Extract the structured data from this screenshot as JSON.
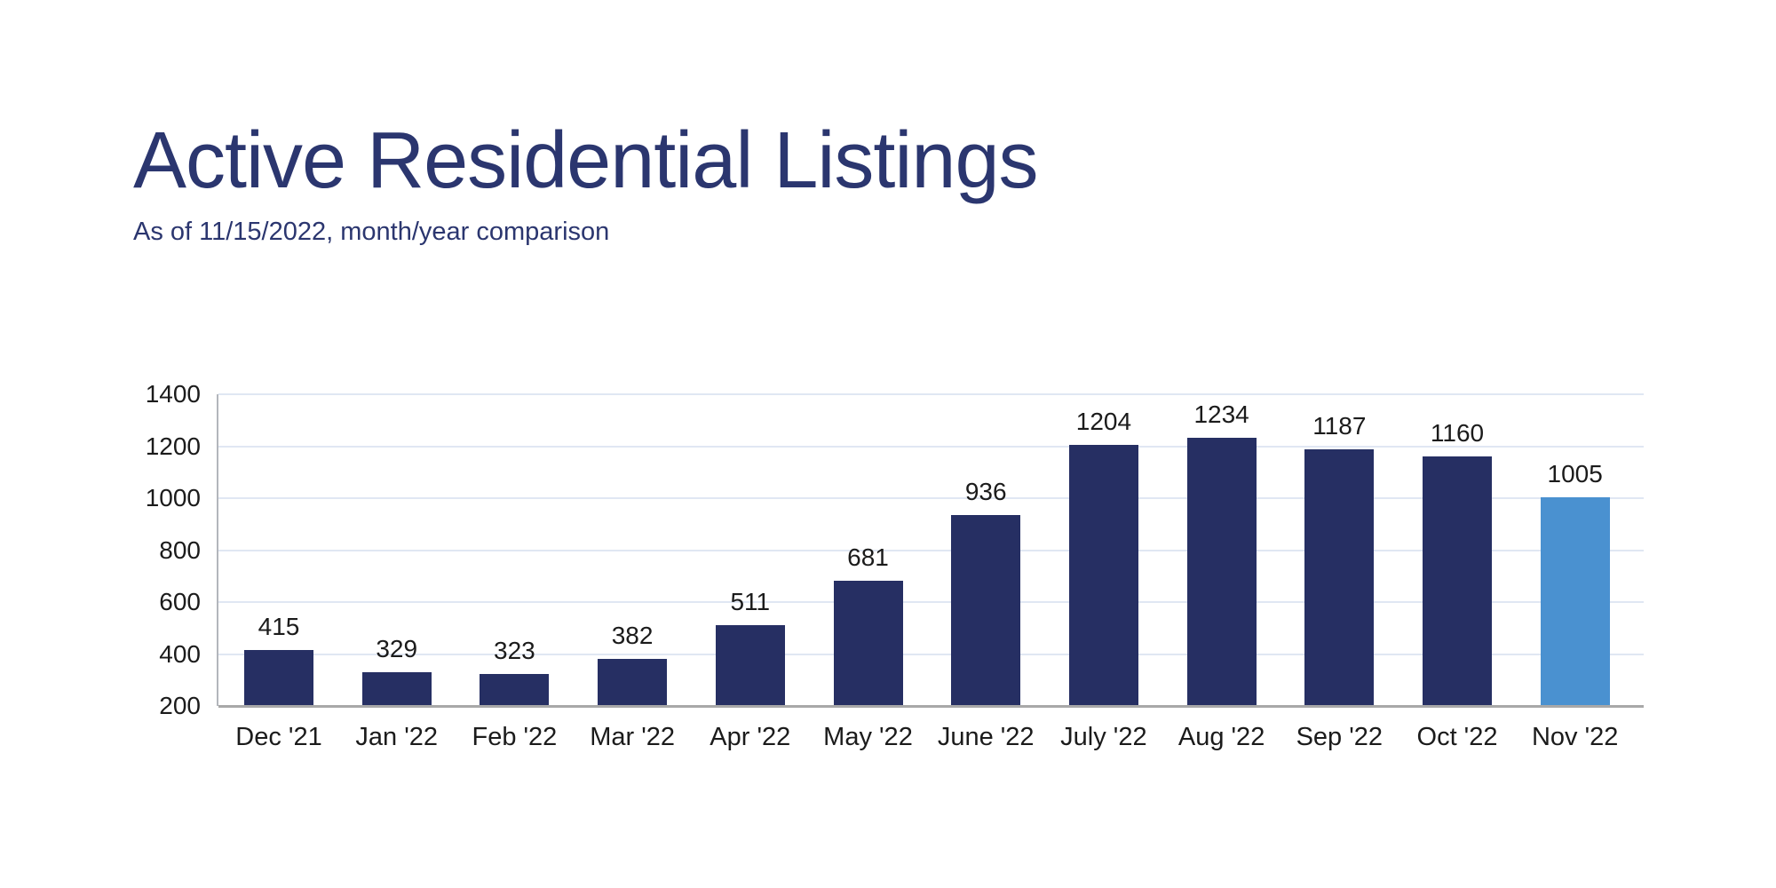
{
  "header": {
    "title": "Active Residential Listings",
    "subtitle": "As of 11/15/2022, month/year comparison",
    "title_color": "#2b366f"
  },
  "chart_data": {
    "type": "bar",
    "title": "Active Residential Listings",
    "subtitle": "As of 11/15/2022, month/year comparison",
    "categories": [
      "Dec '21",
      "Jan '22",
      "Feb '22",
      "Mar '22",
      "Apr '22",
      "May '22",
      "June '22",
      "July '22",
      "Aug '22",
      "Sep '22",
      "Oct '22",
      "Nov '22"
    ],
    "values": [
      415,
      329,
      323,
      382,
      511,
      681,
      936,
      1204,
      1234,
      1187,
      1160,
      1005
    ],
    "value_labels_shown": true,
    "highlight_index": 11,
    "bar_color": "#262f63",
    "highlight_color": "#4a91d0",
    "ylim": [
      200,
      1400
    ],
    "yticks": [
      200,
      400,
      600,
      800,
      1000,
      1200,
      1400
    ],
    "grid": true,
    "gridline_color": "#e0e7f3",
    "baseline_color": "#a8a8a8",
    "legend": "none",
    "xlabel": "",
    "ylabel": ""
  }
}
